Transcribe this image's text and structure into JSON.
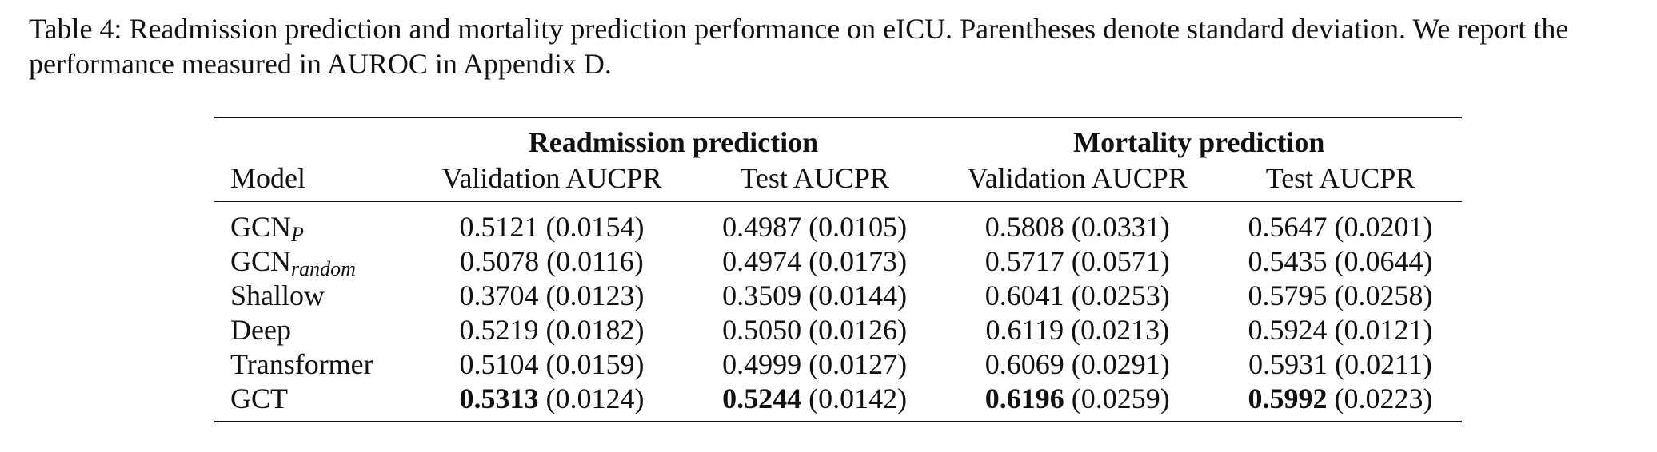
{
  "caption": {
    "label": "Table 4:",
    "text": " Readmission prediction and mortality prediction performance on eICU. Parentheses denote standard deviation. We report the performance measured in AUROC in Appendix D."
  },
  "table": {
    "groups": [
      "Readmission prediction",
      "Mortality prediction"
    ],
    "headers": [
      "Model",
      "Validation AUCPR",
      "Test AUCPR",
      "Validation AUCPR",
      "Test AUCPR"
    ],
    "rows": [
      {
        "model": "GCN",
        "model_sub": "P",
        "cells": [
          {
            "v": "0.5121",
            "sd": "(0.0154)"
          },
          {
            "v": "0.4987",
            "sd": "(0.0105)"
          },
          {
            "v": "0.5808",
            "sd": "(0.0331)"
          },
          {
            "v": "0.5647",
            "sd": "(0.0201)"
          }
        ]
      },
      {
        "model": "GCN",
        "model_sub": "random",
        "cells": [
          {
            "v": "0.5078",
            "sd": "(0.0116)"
          },
          {
            "v": "0.4974",
            "sd": "(0.0173)"
          },
          {
            "v": "0.5717",
            "sd": "(0.0571)"
          },
          {
            "v": "0.5435",
            "sd": "(0.0644)"
          }
        ]
      },
      {
        "model": "Shallow",
        "model_sub": "",
        "cells": [
          {
            "v": "0.3704",
            "sd": "(0.0123)"
          },
          {
            "v": "0.3509",
            "sd": "(0.0144)"
          },
          {
            "v": "0.6041",
            "sd": "(0.0253)"
          },
          {
            "v": "0.5795",
            "sd": "(0.0258)"
          }
        ]
      },
      {
        "model": "Deep",
        "model_sub": "",
        "cells": [
          {
            "v": "0.5219",
            "sd": "(0.0182)"
          },
          {
            "v": "0.5050",
            "sd": "(0.0126)"
          },
          {
            "v": "0.6119",
            "sd": "(0.0213)"
          },
          {
            "v": "0.5924",
            "sd": "(0.0121)"
          }
        ]
      },
      {
        "model": "Transformer",
        "model_sub": "",
        "cells": [
          {
            "v": "0.5104",
            "sd": "(0.0159)"
          },
          {
            "v": "0.4999",
            "sd": "(0.0127)"
          },
          {
            "v": "0.6069",
            "sd": "(0.0291)"
          },
          {
            "v": "0.5931",
            "sd": "(0.0211)"
          }
        ]
      },
      {
        "model": "GCT",
        "model_sub": "",
        "bold": true,
        "cells": [
          {
            "v": "0.5313",
            "sd": "(0.0124)"
          },
          {
            "v": "0.5244",
            "sd": "(0.0142)"
          },
          {
            "v": "0.6196",
            "sd": "(0.0259)"
          },
          {
            "v": "0.5992",
            "sd": "(0.0223)"
          }
        ]
      }
    ]
  }
}
